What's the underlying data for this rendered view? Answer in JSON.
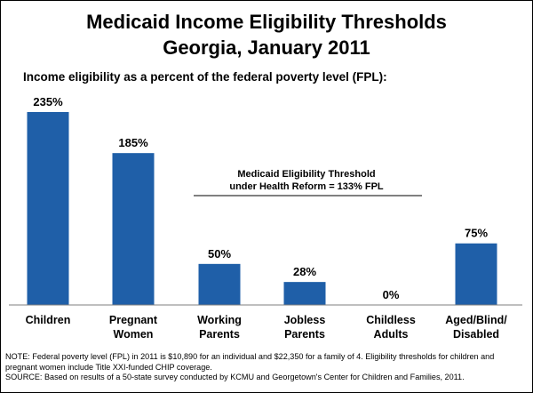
{
  "chart_data": {
    "type": "bar",
    "title_line1": "Medicaid Income Eligibility Thresholds",
    "title_line2": "Georgia, January 2011",
    "subtitle": "Income eligibility as a percent of the federal poverty level (FPL):",
    "categories": [
      [
        "Children"
      ],
      [
        "Pregnant",
        "Women"
      ],
      [
        "Working",
        "Parents"
      ],
      [
        "Jobless",
        "Parents"
      ],
      [
        "Childless",
        "Adults"
      ],
      [
        "Aged/Blind/",
        "Disabled"
      ]
    ],
    "values": [
      235,
      185,
      50,
      28,
      0,
      75
    ],
    "value_labels": [
      "235%",
      "185%",
      "50%",
      "28%",
      "0%",
      "75%"
    ],
    "ylim": [
      0,
      235
    ],
    "bar_color": "#1F5FA8",
    "threshold_annotation": {
      "line1": "Medicaid Eligibility Threshold",
      "line2": "under Health Reform  = 133% FPL"
    }
  },
  "notes": [
    "NOTE: Federal poverty level (FPL) in 2011 is $10,890 for an individual and  $22,350 for a family of 4. Eligibility thresholds for children and",
    "pregnant women  include Title XXI-funded CHIP coverage.",
    "SOURCE: Based on results of a 50-state survey conducted by KCMU and Georgetown's Center for Children and Families, 2011."
  ]
}
